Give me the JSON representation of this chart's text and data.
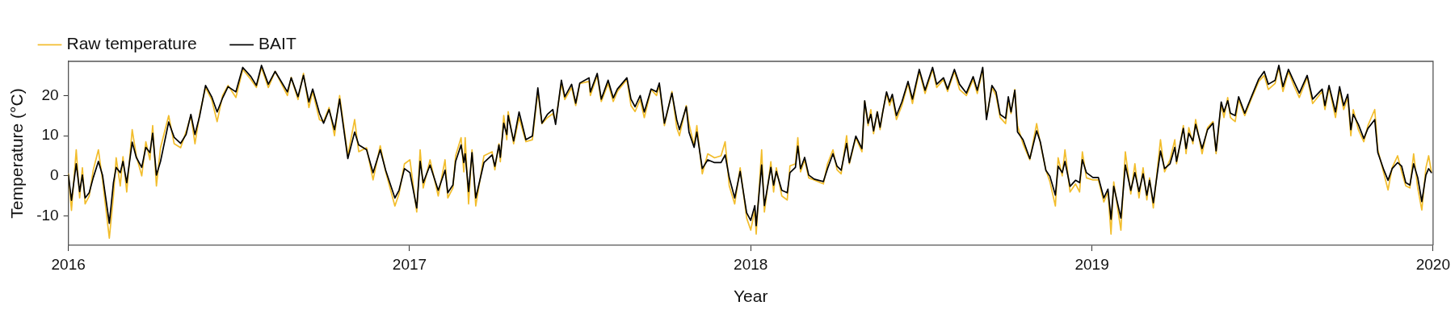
{
  "chart_data": {
    "type": "line",
    "xlabel": "Year",
    "ylabel": "Temperature (°C)",
    "legend": "top left",
    "marker": "none",
    "line_style": "solid",
    "xlim": [
      2016,
      2020
    ],
    "xticks": [
      2016,
      2017,
      2018,
      2019,
      2020
    ],
    "ylim": [
      -17.3,
      28.5
    ],
    "yticks": [
      -10,
      0,
      10,
      20
    ],
    "x": [
      2016.0,
      2016.009,
      2016.023,
      2016.033,
      2016.041,
      2016.049,
      2016.061,
      2016.073,
      2016.088,
      2016.1,
      2016.12,
      2016.132,
      2016.14,
      2016.152,
      2016.16,
      2016.171,
      2016.187,
      2016.199,
      2016.215,
      2016.227,
      2016.239,
      2016.247,
      2016.258,
      2016.27,
      2016.294,
      2016.31,
      2016.329,
      2016.345,
      2016.359,
      2016.371,
      2016.385,
      2016.402,
      2016.42,
      2016.436,
      2016.452,
      2016.468,
      2016.491,
      2016.511,
      2016.535,
      2016.551,
      2016.566,
      2016.586,
      2016.606,
      2016.642,
      2016.653,
      2016.673,
      2016.689,
      2016.705,
      2016.716,
      2016.736,
      2016.748,
      2016.764,
      2016.78,
      2016.795,
      2016.819,
      2016.839,
      2016.851,
      2016.874,
      2016.893,
      2016.914,
      2016.93,
      2016.957,
      2016.969,
      2016.985,
      2017.001,
      2017.021,
      2017.031,
      2017.04,
      2017.06,
      2017.084,
      2017.104,
      2017.112,
      2017.127,
      2017.135,
      2017.151,
      2017.159,
      2017.163,
      2017.173,
      2017.183,
      2017.194,
      2017.218,
      2017.242,
      2017.25,
      2017.262,
      2017.266,
      2017.276,
      2017.285,
      2017.289,
      2017.305,
      2017.321,
      2017.341,
      2017.36,
      2017.376,
      2017.388,
      2017.404,
      2017.42,
      2017.428,
      2017.445,
      2017.455,
      2017.475,
      2017.487,
      2017.499,
      2017.526,
      2017.53,
      2017.55,
      2017.562,
      2017.582,
      2017.597,
      2017.609,
      2017.637,
      2017.649,
      2017.661,
      2017.676,
      2017.688,
      2017.708,
      2017.724,
      2017.732,
      2017.747,
      2017.769,
      2017.783,
      2017.791,
      2017.811,
      2017.819,
      2017.834,
      2017.842,
      2017.858,
      2017.874,
      2017.894,
      2017.913,
      2017.925,
      2017.937,
      2017.953,
      2017.969,
      2017.988,
      2018.0,
      2018.012,
      2018.016,
      2018.032,
      2018.04,
      2018.059,
      2018.067,
      2018.075,
      2018.091,
      2018.107,
      2018.115,
      2018.131,
      2018.138,
      2018.146,
      2018.158,
      2018.17,
      2018.186,
      2018.213,
      2018.225,
      2018.241,
      2018.253,
      2018.265,
      2018.281,
      2018.289,
      2018.308,
      2018.326,
      2018.334,
      2018.344,
      2018.352,
      2018.36,
      2018.371,
      2018.379,
      2018.387,
      2018.398,
      2018.407,
      2018.415,
      2018.427,
      2018.443,
      2018.461,
      2018.474,
      2018.494,
      2018.511,
      2018.533,
      2018.545,
      2018.565,
      2018.577,
      2018.597,
      2018.612,
      2018.632,
      2018.652,
      2018.664,
      2018.68,
      2018.691,
      2018.707,
      2018.719,
      2018.731,
      2018.747,
      2018.755,
      2018.763,
      2018.774,
      2018.782,
      2018.798,
      2018.818,
      2018.838,
      2018.849,
      2018.865,
      2018.877,
      2018.893,
      2018.901,
      2018.913,
      2018.921,
      2018.936,
      2018.952,
      2018.964,
      2018.972,
      2018.984,
      2019.003,
      2019.019,
      2019.035,
      2019.047,
      2019.056,
      2019.064,
      2019.085,
      2019.098,
      2019.114,
      2019.126,
      2019.138,
      2019.15,
      2019.161,
      2019.169,
      2019.18,
      2019.193,
      2019.201,
      2019.213,
      2019.229,
      2019.243,
      2019.248,
      2019.268,
      2019.276,
      2019.284,
      2019.296,
      2019.304,
      2019.323,
      2019.339,
      2019.355,
      2019.364,
      2019.379,
      2019.387,
      2019.398,
      2019.406,
      2019.42,
      2019.43,
      2019.448,
      2019.469,
      2019.489,
      2019.505,
      2019.517,
      2019.537,
      2019.548,
      2019.56,
      2019.576,
      2019.592,
      2019.608,
      2019.631,
      2019.647,
      2019.675,
      2019.683,
      2019.695,
      2019.714,
      2019.726,
      2019.738,
      2019.75,
      2019.759,
      2019.766,
      2019.781,
      2019.797,
      2019.809,
      2019.829,
      2019.838,
      2019.856,
      2019.868,
      2019.88,
      2019.896,
      2019.908,
      2019.92,
      2019.932,
      2019.943,
      2019.955,
      2019.967,
      2019.979,
      2019.987,
      2019.995
    ],
    "series": [
      {
        "name": "Raw temperature",
        "color": "#f2bd2c",
        "values": [
          0.5,
          -8.6,
          6.5,
          -5.5,
          2.0,
          -7.0,
          -5.0,
          1.5,
          6.5,
          -1.0,
          -15.5,
          -5.0,
          4.5,
          -2.5,
          4.8,
          -4.0,
          11.5,
          5.0,
          0.0,
          8.5,
          4.0,
          12.5,
          -2.5,
          7.0,
          15.0,
          8.0,
          7.0,
          11.0,
          15.0,
          8.0,
          15.5,
          22.0,
          19.0,
          13.5,
          20.0,
          22.5,
          19.5,
          26.5,
          24.0,
          22.0,
          27.0,
          22.0,
          26.0,
          20.0,
          24.5,
          19.0,
          25.5,
          17.0,
          21.0,
          14.0,
          13.5,
          17.0,
          10.0,
          20.0,
          5.0,
          14.0,
          6.0,
          7.0,
          -1.0,
          7.5,
          1.0,
          -7.5,
          -4.5,
          3.0,
          4.0,
          -9.0,
          6.5,
          -3.0,
          4.0,
          -5.0,
          4.0,
          -5.5,
          -3.0,
          5.0,
          9.5,
          1.0,
          9.5,
          -7.0,
          6.5,
          -7.5,
          5.0,
          6.0,
          1.5,
          8.0,
          3.5,
          15.0,
          9.0,
          16.0,
          8.0,
          14.5,
          8.5,
          9.0,
          21.0,
          13.0,
          14.5,
          15.5,
          13.5,
          23.0,
          19.0,
          22.0,
          17.5,
          23.0,
          23.5,
          20.0,
          25.0,
          18.5,
          23.0,
          18.5,
          21.0,
          24.0,
          17.5,
          16.0,
          19.0,
          14.5,
          21.5,
          20.0,
          22.5,
          12.5,
          21.0,
          12.0,
          10.0,
          17.5,
          13.0,
          7.5,
          12.5,
          0.5,
          5.5,
          4.5,
          5.0,
          8.5,
          -2.5,
          -7.0,
          2.0,
          -10.5,
          -13.5,
          -8.5,
          -14.5,
          6.5,
          -9.0,
          3.5,
          -4.0,
          2.0,
          -5.0,
          -6.0,
          2.5,
          3.0,
          9.5,
          1.0,
          4.0,
          -0.5,
          -1.0,
          -2.0,
          3.0,
          6.5,
          1.5,
          0.5,
          10.0,
          3.0,
          9.5,
          6.0,
          18.5,
          12.5,
          16.5,
          10.5,
          16.0,
          11.5,
          16.0,
          20.5,
          17.5,
          19.5,
          14.0,
          17.5,
          23.0,
          18.0,
          26.0,
          20.5,
          26.5,
          22.0,
          24.0,
          21.0,
          26.0,
          21.5,
          20.0,
          24.0,
          20.5,
          26.5,
          14.5,
          22.0,
          20.0,
          14.5,
          13.0,
          19.0,
          15.5,
          21.5,
          12.5,
          8.0,
          4.0,
          13.0,
          8.0,
          1.5,
          -1.5,
          -7.5,
          4.5,
          0.0,
          6.5,
          -4.0,
          -2.0,
          -4.0,
          6.0,
          -0.5,
          -1.0,
          -1.0,
          -6.5,
          -4.0,
          -14.5,
          -1.5,
          -13.5,
          6.0,
          -4.5,
          3.0,
          -5.5,
          2.0,
          -6.0,
          -0.5,
          -8.0,
          2.5,
          9.0,
          1.0,
          4.0,
          9.0,
          3.0,
          12.5,
          5.5,
          12.0,
          8.0,
          14.0,
          5.5,
          12.0,
          13.5,
          5.5,
          18.0,
          14.5,
          19.5,
          14.5,
          13.5,
          19.0,
          15.0,
          19.5,
          23.5,
          25.0,
          21.5,
          23.0,
          27.0,
          21.0,
          26.0,
          22.5,
          19.5,
          24.5,
          18.0,
          21.0,
          16.5,
          22.0,
          14.5,
          21.5,
          16.5,
          19.5,
          10.0,
          16.5,
          11.5,
          8.5,
          12.5,
          16.5,
          6.5,
          0.5,
          -3.5,
          2.0,
          5.0,
          1.0,
          -2.5,
          -3.0,
          5.5,
          -3.0,
          -8.5,
          2.0,
          5.0,
          1.0
        ]
      },
      {
        "name": "BAIT",
        "color": "#000000",
        "values": [
          0.2,
          -6.1,
          3.0,
          -3.9,
          0.2,
          -5.5,
          -4.2,
          -0.4,
          3.6,
          0.2,
          -11.8,
          -1.7,
          2.1,
          0.8,
          3.6,
          -1.7,
          8.4,
          4.6,
          2.1,
          7.1,
          5.8,
          10.6,
          0.2,
          3.6,
          13.4,
          9.6,
          8.1,
          10.3,
          15.3,
          10.3,
          15.0,
          22.5,
          19.7,
          15.9,
          19.4,
          22.2,
          20.9,
          27.0,
          24.7,
          22.5,
          27.5,
          22.8,
          26.0,
          20.9,
          24.4,
          19.7,
          25.0,
          18.4,
          21.6,
          15.6,
          13.1,
          16.5,
          11.5,
          19.1,
          4.3,
          10.9,
          7.7,
          6.5,
          0.8,
          6.5,
          1.4,
          -5.5,
          -3.6,
          1.8,
          0.8,
          -8.0,
          3.6,
          -1.7,
          2.7,
          -3.6,
          1.4,
          -4.2,
          -2.3,
          3.6,
          7.7,
          3.3,
          5.5,
          -3.9,
          5.8,
          -5.5,
          3.3,
          5.2,
          2.4,
          7.7,
          4.6,
          13.1,
          10.3,
          15.0,
          8.7,
          15.9,
          9.0,
          9.9,
          21.9,
          13.1,
          15.3,
          16.5,
          12.8,
          23.8,
          19.7,
          22.8,
          18.1,
          23.1,
          24.4,
          20.9,
          25.5,
          19.1,
          23.8,
          19.4,
          21.6,
          24.4,
          19.1,
          17.2,
          20.0,
          15.9,
          21.6,
          20.9,
          23.1,
          13.1,
          20.6,
          14.0,
          11.5,
          17.2,
          10.9,
          7.1,
          10.9,
          1.8,
          4.0,
          3.3,
          3.3,
          5.2,
          -0.4,
          -5.5,
          1.1,
          -9.2,
          -11.1,
          -7.4,
          -12.4,
          2.7,
          -7.4,
          2.1,
          -2.3,
          1.1,
          -3.6,
          -4.2,
          0.8,
          2.1,
          7.4,
          1.8,
          4.6,
          0.2,
          -0.8,
          -1.4,
          1.8,
          5.5,
          2.4,
          1.4,
          8.1,
          3.3,
          9.9,
          6.8,
          18.7,
          13.1,
          15.3,
          11.2,
          15.9,
          12.1,
          15.9,
          20.9,
          18.4,
          20.3,
          15.0,
          18.4,
          23.5,
          19.1,
          26.5,
          21.3,
          27.0,
          22.8,
          24.4,
          21.6,
          26.5,
          22.8,
          20.6,
          24.7,
          21.3,
          27.0,
          14.0,
          22.5,
          20.9,
          15.3,
          14.3,
          19.7,
          15.9,
          21.3,
          10.9,
          9.0,
          4.3,
          11.2,
          8.4,
          1.4,
          -0.1,
          -4.8,
          2.4,
          0.8,
          3.6,
          -2.6,
          -1.1,
          -1.7,
          4.0,
          0.8,
          -0.4,
          -0.4,
          -5.5,
          -3.3,
          -10.8,
          -2.6,
          -10.5,
          2.7,
          -3.6,
          0.8,
          -3.9,
          0.5,
          -4.8,
          -1.1,
          -6.7,
          1.4,
          6.2,
          1.8,
          3.0,
          7.1,
          3.6,
          11.8,
          6.8,
          10.6,
          8.7,
          12.8,
          6.8,
          11.5,
          13.1,
          6.2,
          18.4,
          15.9,
          18.7,
          15.6,
          15.0,
          19.7,
          15.6,
          20.0,
          24.1,
          26.0,
          22.8,
          23.8,
          27.5,
          22.2,
          26.5,
          23.5,
          20.6,
          25.0,
          19.1,
          21.6,
          17.5,
          22.5,
          15.9,
          22.2,
          17.5,
          20.3,
          11.5,
          15.3,
          12.8,
          9.3,
          11.8,
          14.0,
          5.8,
          1.4,
          -1.1,
          1.8,
          3.3,
          2.4,
          -1.7,
          -2.3,
          3.0,
          -0.4,
          -6.4,
          0.2,
          1.8,
          0.8
        ]
      }
    ]
  }
}
